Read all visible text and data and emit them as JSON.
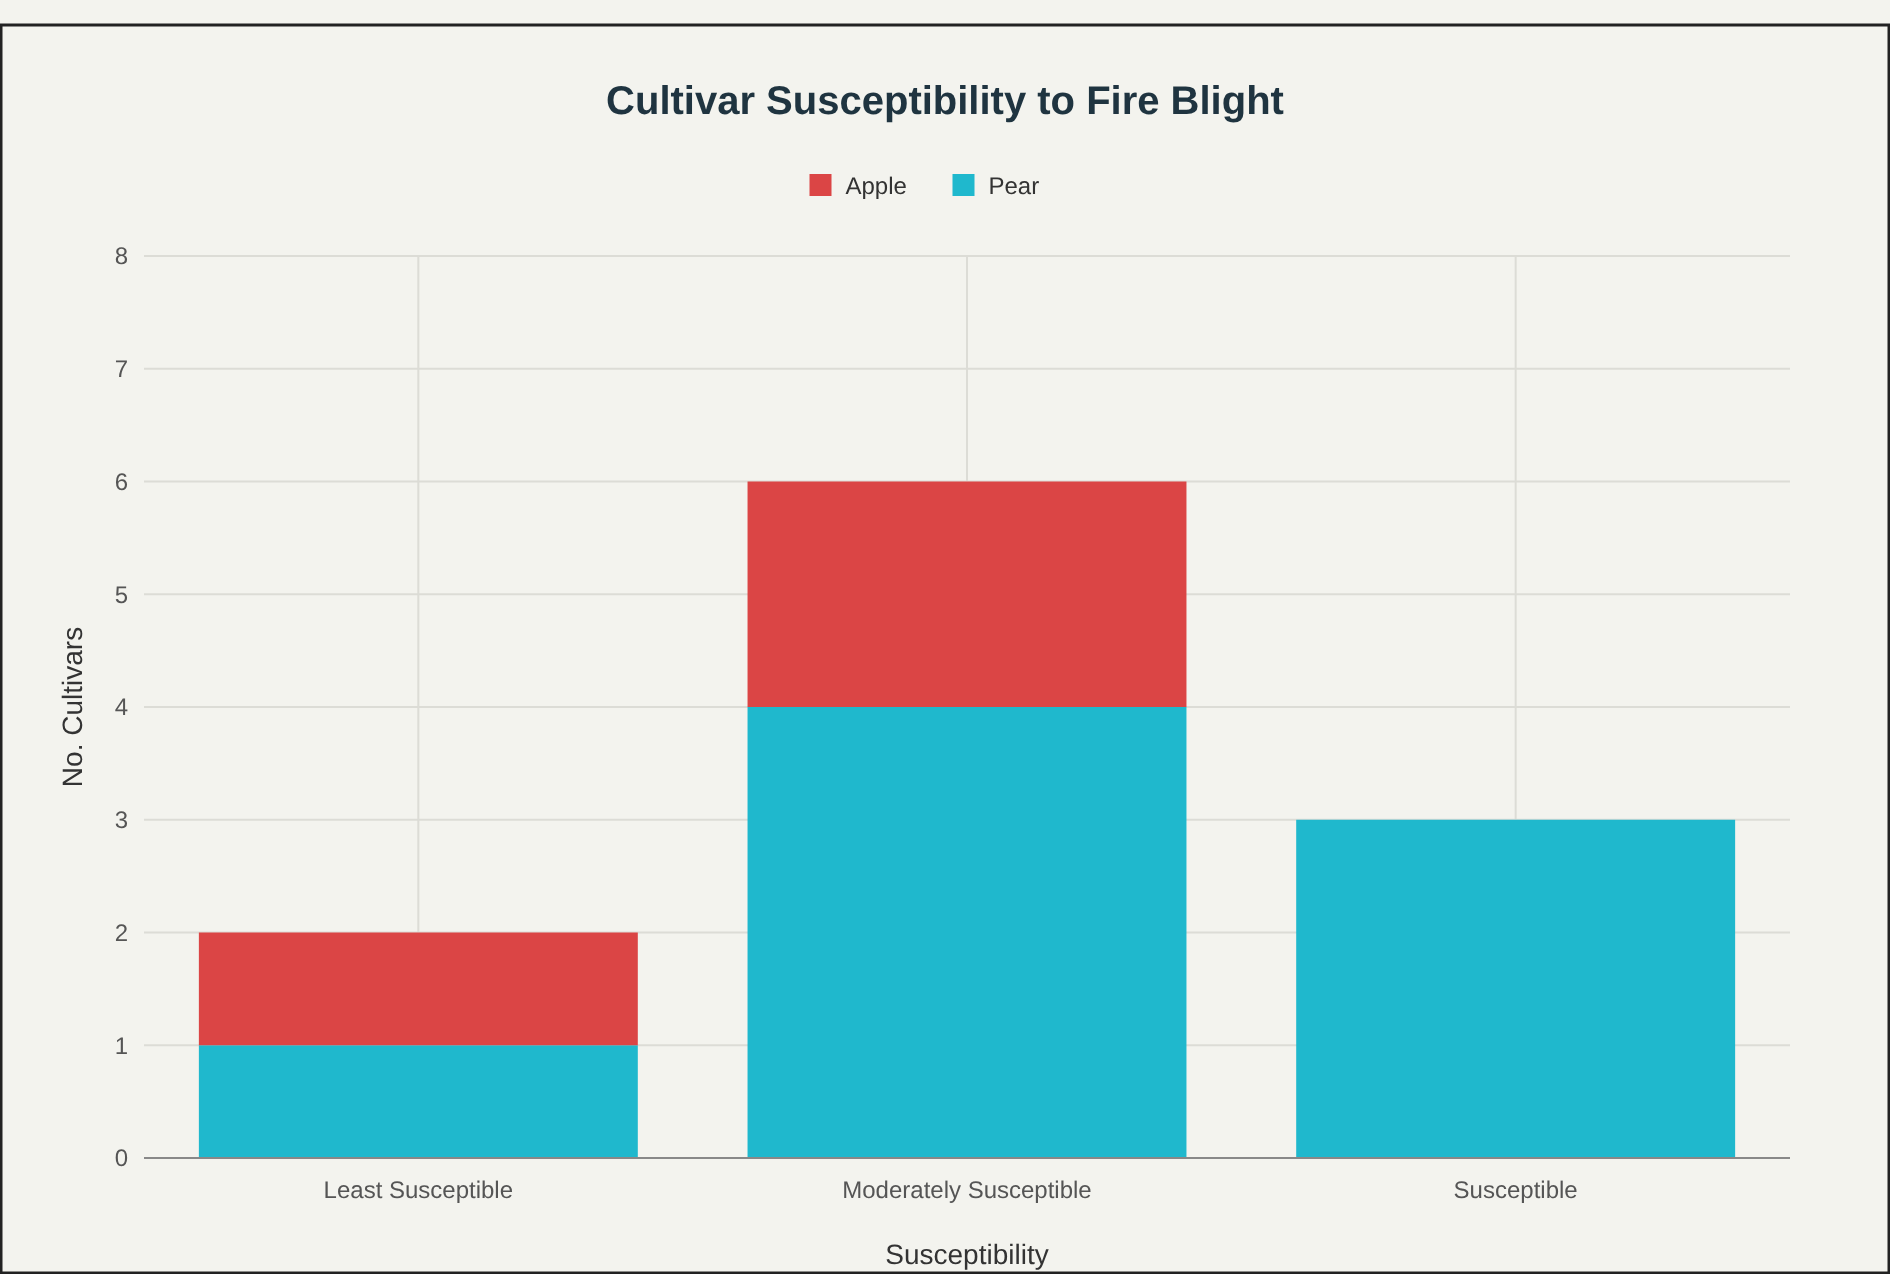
{
  "chart_data": {
    "type": "bar",
    "title": "Cultivar Susceptibility to Fire Blight",
    "xlabel": "Susceptibility",
    "ylabel": "No. Cultivars",
    "categories": [
      "Least Susceptible",
      "Moderately Susceptible",
      "Susceptible"
    ],
    "series": [
      {
        "name": "Pear",
        "color": "#1fb8cd",
        "values": [
          1,
          4,
          3
        ]
      },
      {
        "name": "Apple",
        "color": "#db4545",
        "values": [
          1,
          2,
          0
        ]
      }
    ],
    "stacked": true,
    "ylim": [
      0,
      8
    ],
    "yticks": [
      0,
      1,
      2,
      3,
      4,
      5,
      6,
      7,
      8
    ],
    "grid": true,
    "legend": "top"
  }
}
